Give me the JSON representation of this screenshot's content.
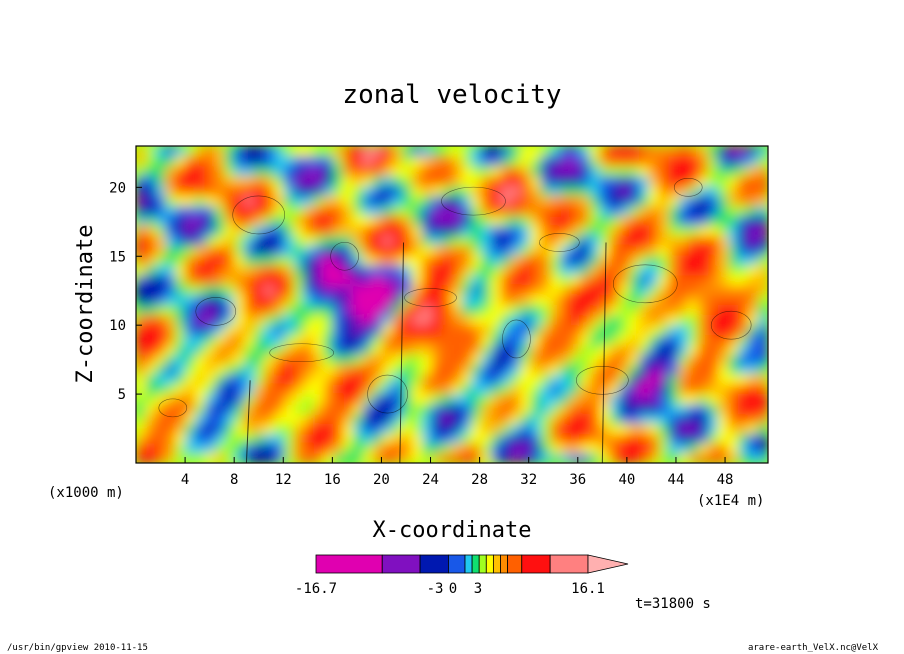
{
  "chart_data": {
    "type": "heatmap",
    "title": "zonal velocity",
    "xlabel": "X-coordinate",
    "ylabel": "Z-coordinate",
    "x_scale_note": "(x1E4 m)",
    "y_scale_note": "(x1000 m)",
    "xlim": [
      0,
      51.5
    ],
    "ylim": [
      0,
      23
    ],
    "x_ticks": [
      4,
      8,
      12,
      16,
      20,
      24,
      28,
      32,
      36,
      40,
      44,
      48
    ],
    "y_ticks": [
      5,
      10,
      15,
      20
    ],
    "colorbar": {
      "colors": [
        "#e000b0",
        "#8010c0",
        "#0018b0",
        "#1858e8",
        "#20c8f0",
        "#10e070",
        "#a0ff20",
        "#ffff00",
        "#ffc000",
        "#ff8c00",
        "#ff6000",
        "#ff1010",
        "#ff8080"
      ],
      "tick_labels": [
        "-16.7",
        "-3",
        "0",
        "3",
        "16.1"
      ],
      "tick_values": [
        -16.7,
        -3,
        0,
        3,
        16.1
      ]
    },
    "time_label": "t=31800 s",
    "grid": false
  },
  "footer": {
    "left": "/usr/bin/gpview   2010-11-15",
    "right": "arare-earth_VelX.nc@VelX"
  }
}
